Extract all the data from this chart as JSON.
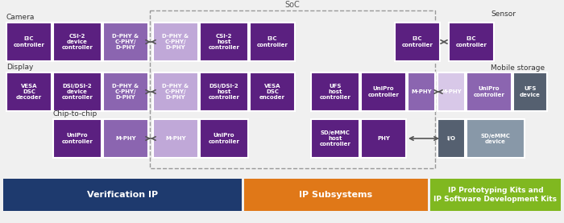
{
  "title": "SoC",
  "bg_color": "#f0f0f0",
  "box_color_dark_purple": "#5b2080",
  "box_color_mid_purple": "#8b65b0",
  "box_color_light_purple": "#c0a8d8",
  "box_color_very_light_purple": "#d8c8e8",
  "box_color_dark_gray": "#556070",
  "box_color_light_gray": "#8898a8",
  "footer_blue": "#1e3a6e",
  "footer_orange": "#e07818",
  "footer_green": "#80b820",
  "text_color_white": "#ffffff",
  "text_color_dark": "#333333",
  "soc_border_color": "#999999",
  "camera_label": "Camera",
  "display_label": "Display",
  "chip_label": "Chip-to-chip",
  "sensor_label": "Sensor",
  "mobile_label": "Mobile storage",
  "footer1": "Verification IP",
  "footer2": "IP Subsystems",
  "footer3": "IP Prototyping Kits and\nIP Software Development Kits"
}
